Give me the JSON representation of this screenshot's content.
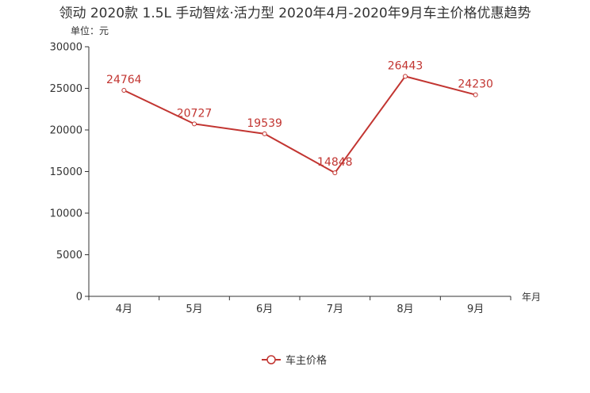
{
  "chart_data": {
    "type": "line",
    "title": "领动 2020款 1.5L 手动智炫·活力型 2020年4月-2020年9月车主价格优惠趋势",
    "unit_label": "单位：元",
    "xlabel": "年月",
    "ylabel": "",
    "categories": [
      "4月",
      "5月",
      "6月",
      "7月",
      "8月",
      "9月"
    ],
    "series": [
      {
        "name": "车主价格",
        "values": [
          24764,
          20727,
          19539,
          14848,
          26443,
          24230
        ],
        "color": "#c23531"
      }
    ],
    "ylim": [
      0,
      30000
    ],
    "yticks": [
      0,
      5000,
      10000,
      15000,
      20000,
      25000,
      30000
    ],
    "grid": false,
    "legend_position": "bottom-center"
  }
}
